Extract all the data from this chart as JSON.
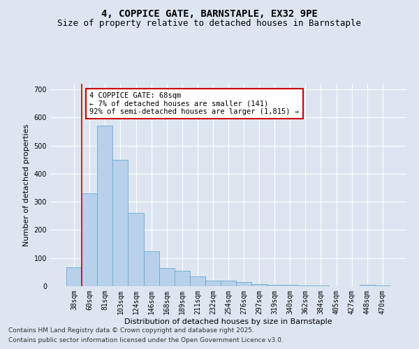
{
  "title1": "4, COPPICE GATE, BARNSTAPLE, EX32 9PE",
  "title2": "Size of property relative to detached houses in Barnstaple",
  "xlabel": "Distribution of detached houses by size in Barnstaple",
  "ylabel": "Number of detached properties",
  "categories": [
    "38sqm",
    "60sqm",
    "81sqm",
    "103sqm",
    "124sqm",
    "146sqm",
    "168sqm",
    "189sqm",
    "211sqm",
    "232sqm",
    "254sqm",
    "276sqm",
    "297sqm",
    "319sqm",
    "340sqm",
    "362sqm",
    "384sqm",
    "405sqm",
    "427sqm",
    "448sqm",
    "470sqm"
  ],
  "values": [
    68,
    330,
    570,
    450,
    260,
    125,
    65,
    55,
    35,
    20,
    20,
    15,
    8,
    5,
    5,
    3,
    2,
    1,
    0,
    4,
    2
  ],
  "bar_color": "#b8d0ea",
  "bar_edge_color": "#6aaad4",
  "vline_color": "#cc0000",
  "annotation_text": "4 COPPICE GATE: 68sqm\n← 7% of detached houses are smaller (141)\n92% of semi-detached houses are larger (1,815) →",
  "annotation_box_color": "#cc0000",
  "ylim": [
    0,
    720
  ],
  "yticks": [
    0,
    100,
    200,
    300,
    400,
    500,
    600,
    700
  ],
  "background_color": "#dde6f0",
  "plot_bg_color": "#dde6f0",
  "footer1": "Contains HM Land Registry data © Crown copyright and database right 2025.",
  "footer2": "Contains public sector information licensed under the Open Government Licence v3.0.",
  "title_fontsize": 10,
  "subtitle_fontsize": 9,
  "axis_label_fontsize": 8,
  "tick_fontsize": 7,
  "annotation_fontsize": 7.5
}
